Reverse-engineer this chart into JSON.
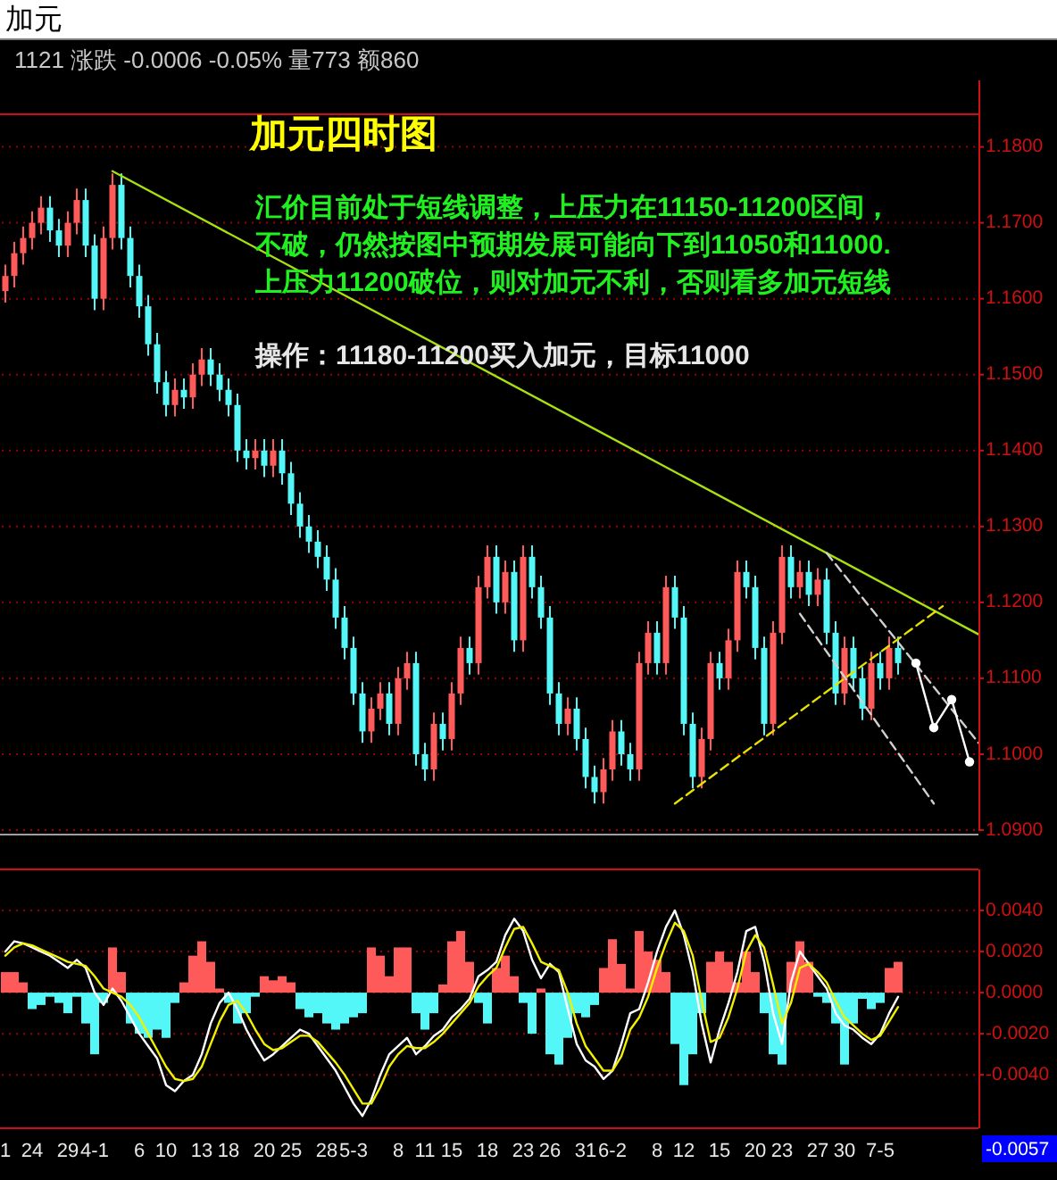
{
  "chart_data": [
    {
      "type": "candlestick",
      "title": "加元四时图",
      "annotations": [
        "加元",
        "1121 涨跌  -0.0006 -0.05% 量773 额860",
        "汇价目前处于短线调整，上压力在11150-11200区间，",
        "不破，仍然按图中预期发展可能向下到11050和11000.",
        "上压力11200破位，则对加元不利，否则看多加元短线",
        "操作：11180-11200买入加元，目标11000"
      ],
      "categories": [
        null,
        null,
        null,
        null,
        null,
        null,
        null,
        null,
        null,
        null,
        null,
        null,
        null,
        null,
        null,
        null,
        null,
        null,
        null,
        null,
        null,
        null,
        null,
        null,
        null,
        null,
        null,
        null,
        null,
        null,
        null,
        null,
        null,
        null,
        null,
        null,
        null,
        null,
        null,
        null,
        null,
        null,
        null,
        null,
        null,
        null,
        null,
        null,
        null,
        null,
        null,
        null,
        null,
        null,
        null,
        null,
        null,
        null,
        null,
        null,
        null,
        null,
        null,
        null,
        null,
        null,
        null,
        null,
        null,
        null,
        null,
        null,
        null,
        null,
        null,
        null,
        null,
        null,
        null,
        null,
        null,
        null,
        null,
        null,
        null,
        null,
        null,
        null,
        null,
        null,
        null,
        null,
        null,
        null,
        null,
        null,
        null,
        null,
        null,
        null,
        null,
        null,
        null,
        null,
        null,
        null,
        null,
        null,
        null,
        null
      ],
      "ohlc": [
        [
          1.161,
          1.1645,
          1.1595,
          1.163
        ],
        [
          1.163,
          1.1675,
          1.1615,
          1.166
        ],
        [
          1.166,
          1.1695,
          1.1645,
          1.168
        ],
        [
          1.168,
          1.1715,
          1.1665,
          1.17
        ],
        [
          1.17,
          1.1735,
          1.1685,
          1.172
        ],
        [
          1.172,
          1.1735,
          1.1675,
          1.169
        ],
        [
          1.169,
          1.1705,
          1.1655,
          1.167
        ],
        [
          1.167,
          1.1715,
          1.1655,
          1.17
        ],
        [
          1.17,
          1.1745,
          1.1685,
          1.173
        ],
        [
          1.173,
          1.1745,
          1.1655,
          1.167
        ],
        [
          1.167,
          1.1685,
          1.1585,
          1.16
        ],
        [
          1.16,
          1.1695,
          1.1585,
          1.168
        ],
        [
          1.168,
          1.1765,
          1.1665,
          1.175
        ],
        [
          1.175,
          1.1765,
          1.1665,
          1.168
        ],
        [
          1.168,
          1.1695,
          1.1615,
          1.163
        ],
        [
          1.163,
          1.1645,
          1.1575,
          1.159
        ],
        [
          1.159,
          1.1605,
          1.1525,
          1.154
        ],
        [
          1.154,
          1.1555,
          1.1475,
          1.149
        ],
        [
          1.149,
          1.1505,
          1.1445,
          1.146
        ],
        [
          1.146,
          1.1495,
          1.1445,
          1.148
        ],
        [
          1.148,
          1.1495,
          1.1455,
          1.147
        ],
        [
          1.147,
          1.1515,
          1.1455,
          1.15
        ],
        [
          1.15,
          1.1535,
          1.1485,
          1.152
        ],
        [
          1.152,
          1.1535,
          1.1485,
          1.15
        ],
        [
          1.15,
          1.1515,
          1.1465,
          1.148
        ],
        [
          1.148,
          1.1495,
          1.1445,
          1.146
        ],
        [
          1.146,
          1.1475,
          1.1385,
          1.14
        ],
        [
          1.14,
          1.1415,
          1.1375,
          1.139
        ],
        [
          1.139,
          1.1415,
          1.1375,
          1.14
        ],
        [
          1.14,
          1.1415,
          1.1365,
          1.138
        ],
        [
          1.138,
          1.1415,
          1.1365,
          1.14
        ],
        [
          1.14,
          1.1415,
          1.1355,
          1.137
        ],
        [
          1.137,
          1.1385,
          1.1315,
          1.133
        ],
        [
          1.133,
          1.1345,
          1.1285,
          1.13
        ],
        [
          1.13,
          1.1315,
          1.1265,
          1.128
        ],
        [
          1.128,
          1.1295,
          1.1245,
          1.126
        ],
        [
          1.126,
          1.1275,
          1.1215,
          1.123
        ],
        [
          1.123,
          1.1245,
          1.1165,
          1.118
        ],
        [
          1.118,
          1.1195,
          1.1125,
          1.114
        ],
        [
          1.114,
          1.1155,
          1.1065,
          1.108
        ],
        [
          1.108,
          1.1095,
          1.1015,
          1.103
        ],
        [
          1.103,
          1.1075,
          1.1015,
          1.106
        ],
        [
          1.106,
          1.1095,
          1.1045,
          1.108
        ],
        [
          1.108,
          1.1095,
          1.1025,
          1.104
        ],
        [
          1.104,
          1.1115,
          1.1025,
          1.11
        ],
        [
          1.11,
          1.1135,
          1.1085,
          1.112
        ],
        [
          1.112,
          1.1135,
          1.0985,
          1.1
        ],
        [
          1.1,
          1.1015,
          1.0965,
          1.098
        ],
        [
          1.098,
          1.1055,
          1.0965,
          1.104
        ],
        [
          1.104,
          1.1055,
          1.1005,
          1.102
        ],
        [
          1.102,
          1.1095,
          1.1005,
          1.108
        ],
        [
          1.108,
          1.1155,
          1.1065,
          1.114
        ],
        [
          1.114,
          1.1155,
          1.1105,
          1.112
        ],
        [
          1.112,
          1.1235,
          1.1105,
          1.122
        ],
        [
          1.122,
          1.1275,
          1.1205,
          1.126
        ],
        [
          1.126,
          1.1275,
          1.1185,
          1.12
        ],
        [
          1.12,
          1.1255,
          1.1185,
          1.124
        ],
        [
          1.124,
          1.1255,
          1.1135,
          1.115
        ],
        [
          1.115,
          1.1275,
          1.1135,
          1.126
        ],
        [
          1.126,
          1.1275,
          1.1205,
          1.122
        ],
        [
          1.122,
          1.1235,
          1.1165,
          1.118
        ],
        [
          1.118,
          1.1195,
          1.1065,
          1.108
        ],
        [
          1.108,
          1.1095,
          1.1025,
          1.104
        ],
        [
          1.104,
          1.1075,
          1.1025,
          1.106
        ],
        [
          1.106,
          1.1075,
          1.1005,
          1.102
        ],
        [
          1.102,
          1.1035,
          1.0955,
          1.097
        ],
        [
          1.097,
          1.0985,
          1.0935,
          1.095
        ],
        [
          1.095,
          1.0995,
          1.0935,
          1.098
        ],
        [
          1.098,
          1.1045,
          1.0965,
          1.103
        ],
        [
          1.103,
          1.1045,
          1.0985,
          1.1
        ],
        [
          1.1,
          1.1015,
          1.0965,
          1.098
        ],
        [
          1.098,
          1.1135,
          1.0965,
          1.112
        ],
        [
          1.112,
          1.1175,
          1.1105,
          1.116
        ],
        [
          1.116,
          1.1175,
          1.1105,
          1.112
        ],
        [
          1.112,
          1.1235,
          1.1105,
          1.122
        ],
        [
          1.122,
          1.1235,
          1.1165,
          1.118
        ],
        [
          1.118,
          1.1195,
          1.1025,
          1.104
        ],
        [
          1.104,
          1.1055,
          1.0955,
          1.097
        ],
        [
          1.097,
          1.1035,
          1.0955,
          1.102
        ],
        [
          1.102,
          1.1135,
          1.1005,
          1.112
        ],
        [
          1.112,
          1.1135,
          1.1085,
          1.11
        ],
        [
          1.11,
          1.1165,
          1.1085,
          1.115
        ],
        [
          1.115,
          1.1255,
          1.1135,
          1.124
        ],
        [
          1.124,
          1.1255,
          1.1205,
          1.122
        ],
        [
          1.122,
          1.1235,
          1.1125,
          1.114
        ],
        [
          1.114,
          1.1155,
          1.1025,
          1.104
        ],
        [
          1.104,
          1.1175,
          1.1025,
          1.116
        ],
        [
          1.116,
          1.1275,
          1.1145,
          1.126
        ],
        [
          1.126,
          1.1275,
          1.1205,
          1.122
        ],
        [
          1.122,
          1.1255,
          1.1205,
          1.124
        ],
        [
          1.124,
          1.1255,
          1.1195,
          1.121
        ],
        [
          1.121,
          1.1245,
          1.1195,
          1.123
        ],
        [
          1.123,
          1.1245,
          1.1145,
          1.116
        ],
        [
          1.116,
          1.1175,
          1.1065,
          1.108
        ],
        [
          1.108,
          1.1155,
          1.1065,
          1.114
        ],
        [
          1.114,
          1.1155,
          1.1085,
          1.11
        ],
        [
          1.11,
          1.1115,
          1.1045,
          1.106
        ],
        [
          1.106,
          1.1135,
          1.1045,
          1.112
        ],
        [
          1.112,
          1.1135,
          1.1085,
          1.11
        ],
        [
          1.11,
          1.1155,
          1.1085,
          1.114
        ],
        [
          1.114,
          1.1155,
          1.1105,
          1.112
        ],
        null,
        null,
        null,
        null,
        null,
        null,
        null,
        null,
        null
      ],
      "series": [
        {
          "type": "line",
          "color": "#a8e010",
          "values": [
            null,
            null,
            null,
            null,
            null,
            null,
            null,
            null,
            null,
            null,
            null,
            null,
            1.1768,
            null,
            null,
            null,
            null,
            null,
            null,
            null,
            null,
            null,
            null,
            null,
            null,
            null,
            null,
            null,
            null,
            null,
            null,
            null,
            null,
            null,
            null,
            null,
            null,
            null,
            null,
            null,
            null,
            null,
            null,
            null,
            null,
            null,
            null,
            null,
            null,
            null,
            null,
            null,
            null,
            null,
            null,
            null,
            null,
            null,
            null,
            null,
            null,
            null,
            null,
            null,
            null,
            null,
            null,
            null,
            null,
            null,
            null,
            null,
            null,
            null,
            null,
            null,
            null,
            null,
            null,
            null,
            null,
            null,
            null,
            null,
            null,
            null,
            null,
            null,
            null,
            null,
            null,
            null,
            null,
            null,
            null,
            null,
            null,
            null,
            null,
            null,
            null,
            null,
            null,
            null,
            null,
            null,
            null,
            null,
            null,
            1.1158
          ]
        },
        {
          "type": "line",
          "color": "#e8e000",
          "line_style": "dashed",
          "values": [
            null,
            null,
            null,
            null,
            null,
            null,
            null,
            null,
            null,
            null,
            null,
            null,
            null,
            null,
            null,
            null,
            null,
            null,
            null,
            null,
            null,
            null,
            null,
            null,
            null,
            null,
            null,
            null,
            null,
            null,
            null,
            null,
            null,
            null,
            null,
            null,
            null,
            null,
            null,
            null,
            null,
            null,
            null,
            null,
            null,
            null,
            null,
            null,
            null,
            null,
            null,
            null,
            null,
            null,
            null,
            null,
            null,
            null,
            null,
            null,
            null,
            null,
            null,
            null,
            null,
            null,
            null,
            null,
            null,
            null,
            null,
            null,
            null,
            null,
            null,
            1.0935,
            null,
            null,
            null,
            null,
            null,
            null,
            null,
            null,
            null,
            null,
            null,
            null,
            null,
            null,
            null,
            null,
            null,
            null,
            null,
            null,
            null,
            null,
            null,
            null,
            null,
            null,
            null,
            null,
            null,
            1.1195,
            null,
            null,
            null,
            null
          ]
        },
        {
          "type": "line",
          "color": "#d0d0d0",
          "line_style": "dashed",
          "values": [
            null,
            null,
            null,
            null,
            null,
            null,
            null,
            null,
            null,
            null,
            null,
            null,
            null,
            null,
            null,
            null,
            null,
            null,
            null,
            null,
            null,
            null,
            null,
            null,
            null,
            null,
            null,
            null,
            null,
            null,
            null,
            null,
            null,
            null,
            null,
            null,
            null,
            null,
            null,
            null,
            null,
            null,
            null,
            null,
            null,
            null,
            null,
            null,
            null,
            null,
            null,
            null,
            null,
            null,
            null,
            null,
            null,
            null,
            null,
            null,
            null,
            null,
            null,
            null,
            null,
            null,
            null,
            null,
            null,
            null,
            null,
            null,
            null,
            null,
            null,
            null,
            null,
            null,
            null,
            null,
            null,
            null,
            null,
            null,
            null,
            null,
            null,
            null,
            null,
            null,
            null,
            null,
            1.1265,
            null,
            null,
            null,
            null,
            null,
            null,
            null,
            null,
            null,
            null,
            null,
            null,
            null,
            null,
            null,
            null,
            1.1015
          ]
        },
        {
          "type": "line",
          "color": "#d0d0d0",
          "line_style": "dashed",
          "values": [
            null,
            null,
            null,
            null,
            null,
            null,
            null,
            null,
            null,
            null,
            null,
            null,
            null,
            null,
            null,
            null,
            null,
            null,
            null,
            null,
            null,
            null,
            null,
            null,
            null,
            null,
            null,
            null,
            null,
            null,
            null,
            null,
            null,
            null,
            null,
            null,
            null,
            null,
            null,
            null,
            null,
            null,
            null,
            null,
            null,
            null,
            null,
            null,
            null,
            null,
            null,
            null,
            null,
            null,
            null,
            null,
            null,
            null,
            null,
            null,
            null,
            null,
            null,
            null,
            null,
            null,
            null,
            null,
            null,
            null,
            null,
            null,
            null,
            null,
            null,
            null,
            null,
            null,
            null,
            null,
            null,
            null,
            null,
            null,
            null,
            null,
            null,
            null,
            null,
            1.1185,
            null,
            null,
            null,
            null,
            null,
            null,
            null,
            null,
            null,
            null,
            null,
            null,
            null,
            null,
            1.0935,
            null,
            null,
            null,
            null,
            null
          ]
        },
        {
          "type": "line",
          "color": "#ffffff",
          "marker": "circle",
          "values": [
            null,
            null,
            null,
            null,
            null,
            null,
            null,
            null,
            null,
            null,
            null,
            null,
            null,
            null,
            null,
            null,
            null,
            null,
            null,
            null,
            null,
            null,
            null,
            null,
            null,
            null,
            null,
            null,
            null,
            null,
            null,
            null,
            null,
            null,
            null,
            null,
            null,
            null,
            null,
            null,
            null,
            null,
            null,
            null,
            null,
            null,
            null,
            null,
            null,
            null,
            null,
            null,
            null,
            null,
            null,
            null,
            null,
            null,
            null,
            null,
            null,
            null,
            null,
            null,
            null,
            null,
            null,
            null,
            null,
            null,
            null,
            null,
            null,
            null,
            null,
            null,
            null,
            null,
            null,
            null,
            null,
            null,
            null,
            null,
            null,
            null,
            null,
            null,
            null,
            null,
            null,
            null,
            null,
            null,
            null,
            null,
            null,
            null,
            null,
            null,
            null,
            null,
            1.112,
            null,
            1.1035,
            null,
            1.1072,
            null,
            1.099,
            null
          ]
        }
      ],
      "ylim": [
        1.09,
        1.1843
      ],
      "yticks": [
        {
          "value": 1.09,
          "label": "1.0900"
        },
        {
          "value": 1.1,
          "label": "1.1000"
        },
        {
          "value": 1.11,
          "label": "1.1100"
        },
        {
          "value": 1.12,
          "label": "1.1200"
        },
        {
          "value": 1.13,
          "label": "1.1300"
        },
        {
          "value": 1.14,
          "label": "1.1400"
        },
        {
          "value": 1.15,
          "label": "1.1500"
        },
        {
          "value": 1.16,
          "label": "1.1600"
        },
        {
          "value": 1.17,
          "label": "1.1700"
        },
        {
          "value": 1.18,
          "label": "1.1800"
        }
      ],
      "grid": "y",
      "tick_labels": "y"
    },
    {
      "type": "bar",
      "categories": [
        "1",
        null,
        null,
        "24",
        null,
        null,
        null,
        "29",
        null,
        null,
        "4-1",
        null,
        null,
        null,
        null,
        "6",
        null,
        null,
        "10",
        null,
        null,
        null,
        "13",
        null,
        null,
        "18",
        null,
        null,
        null,
        "20",
        null,
        null,
        "25",
        null,
        null,
        null,
        "28",
        null,
        null,
        "5-3",
        null,
        null,
        null,
        null,
        "8",
        null,
        null,
        "11",
        null,
        null,
        "15",
        null,
        null,
        null,
        "18",
        null,
        null,
        null,
        "23",
        null,
        null,
        "26",
        null,
        null,
        null,
        "31",
        null,
        null,
        "6-2",
        null,
        null,
        null,
        null,
        "8",
        null,
        null,
        "12",
        null,
        null,
        null,
        "15",
        null,
        null,
        null,
        "20",
        null,
        null,
        "23",
        null,
        null,
        null,
        "27",
        null,
        null,
        "30",
        null,
        null,
        null,
        "7-5",
        null,
        null,
        null,
        null,
        null,
        null,
        null,
        null,
        null,
        null,
        null
      ],
      "series": [
        {
          "type": "bar",
          "values": [
            0.001,
            0.001,
            0.0005,
            -0.0008,
            -0.0006,
            -0.0002,
            -0.0005,
            -0.001,
            -0.0002,
            -0.0015,
            -0.003,
            -0.0005,
            0.0022,
            0.001,
            -0.0015,
            -0.002,
            -0.0022,
            -0.0018,
            -0.0022,
            -0.0005,
            0.0005,
            0.0018,
            0.0025,
            0.0015,
            0.0002,
            -0.0005,
            -0.0015,
            -0.001,
            -0.0002,
            0.0008,
            0.0006,
            0.0008,
            0.0005,
            -0.0008,
            -0.0012,
            -0.001,
            -0.0015,
            -0.0018,
            -0.0015,
            -0.0012,
            -0.001,
            0.0022,
            0.0018,
            0.0008,
            0.0022,
            0.0022,
            -0.001,
            -0.0018,
            -0.001,
            0.0004,
            0.0025,
            0.003,
            0.0015,
            -0.0005,
            -0.0015,
            0.0012,
            0.0018,
            0.0008,
            -0.0005,
            -0.002,
            0.0002,
            -0.003,
            -0.0035,
            -0.0022,
            -0.001,
            -0.0012,
            -0.0006,
            0.0012,
            0.0026,
            0.0014,
            0.0002,
            0.003,
            0.002,
            0.0016,
            0.001,
            -0.0025,
            -0.0045,
            -0.003,
            -0.001,
            0.0015,
            0.002,
            0.0015,
            0.0005,
            0.002,
            0.001,
            -0.001,
            -0.003,
            -0.0035,
            0.0015,
            0.0025,
            0.0015,
            -0.0002,
            -0.0005,
            -0.0015,
            -0.0035,
            -0.0015,
            -0.0003,
            -0.0008,
            -0.0005,
            0.0012,
            0.0015,
            null,
            null,
            null,
            null,
            null,
            null,
            null,
            null,
            null
          ],
          "colors": [
            "#ff5a5a",
            "#ff5a5a",
            "#ff5a5a",
            "#54f7f7",
            "#54f7f7",
            "#54f7f7",
            "#54f7f7",
            "#54f7f7",
            "#54f7f7",
            "#54f7f7",
            "#54f7f7",
            "#54f7f7",
            "#ff5a5a",
            "#ff5a5a",
            "#54f7f7",
            "#54f7f7",
            "#54f7f7",
            "#54f7f7",
            "#54f7f7",
            "#54f7f7",
            "#ff5a5a",
            "#ff5a5a",
            "#ff5a5a",
            "#ff5a5a",
            "#ff5a5a",
            "#54f7f7",
            "#54f7f7",
            "#54f7f7",
            "#54f7f7",
            "#ff5a5a",
            "#ff5a5a",
            "#ff5a5a",
            "#ff5a5a",
            "#54f7f7",
            "#54f7f7",
            "#54f7f7",
            "#54f7f7",
            "#54f7f7",
            "#54f7f7",
            "#54f7f7",
            "#54f7f7",
            "#ff5a5a",
            "#ff5a5a",
            "#ff5a5a",
            "#ff5a5a",
            "#ff5a5a",
            "#54f7f7",
            "#54f7f7",
            "#54f7f7",
            "#ff5a5a",
            "#ff5a5a",
            "#ff5a5a",
            "#ff5a5a",
            "#54f7f7",
            "#54f7f7",
            "#ff5a5a",
            "#ff5a5a",
            "#ff5a5a",
            "#54f7f7",
            "#54f7f7",
            "#ff5a5a",
            "#54f7f7",
            "#54f7f7",
            "#54f7f7",
            "#54f7f7",
            "#54f7f7",
            "#54f7f7",
            "#ff5a5a",
            "#ff5a5a",
            "#ff5a5a",
            "#ff5a5a",
            "#ff5a5a",
            "#ff5a5a",
            "#ff5a5a",
            "#ff5a5a",
            "#54f7f7",
            "#54f7f7",
            "#54f7f7",
            "#54f7f7",
            "#ff5a5a",
            "#ff5a5a",
            "#ff5a5a",
            "#ff5a5a",
            "#ff5a5a",
            "#ff5a5a",
            "#54f7f7",
            "#54f7f7",
            "#54f7f7",
            "#ff5a5a",
            "#ff5a5a",
            "#ff5a5a",
            "#54f7f7",
            "#54f7f7",
            "#54f7f7",
            "#54f7f7",
            "#54f7f7",
            "#54f7f7",
            "#54f7f7",
            "#54f7f7",
            "#ff5a5a",
            "#ff5a5a",
            null,
            null,
            null,
            null,
            null,
            null,
            null,
            null,
            null
          ]
        },
        {
          "type": "line",
          "color": "#ffffff",
          "values": [
            0.002,
            0.0025,
            0.0024,
            0.0022,
            0.002,
            0.0018,
            0.0015,
            0.0012,
            0.0016,
            0.0012,
            0.0,
            -0.0006,
            0.0002,
            -0.0004,
            -0.0012,
            -0.002,
            -0.0026,
            -0.0032,
            -0.0045,
            -0.0048,
            -0.0043,
            -0.004,
            -0.003,
            -0.0015,
            -0.0005,
            0.0,
            -0.0008,
            -0.0018,
            -0.0026,
            -0.0033,
            -0.003,
            -0.0026,
            -0.0022,
            -0.0018,
            -0.002,
            -0.0026,
            -0.0032,
            -0.0038,
            -0.0046,
            -0.0054,
            -0.006,
            -0.0052,
            -0.004,
            -0.003,
            -0.0026,
            -0.0022,
            -0.003,
            -0.0026,
            -0.0021,
            -0.0018,
            -0.0012,
            -0.0008,
            -0.0003,
            0.0008,
            0.0011,
            0.0015,
            0.0028,
            0.0036,
            0.003,
            0.0016,
            0.0007,
            0.0014,
            0.001,
            -0.0008,
            -0.0025,
            -0.0033,
            -0.0036,
            -0.0042,
            -0.0038,
            -0.0025,
            -0.001,
            -0.0008,
            0.0005,
            0.002,
            0.0032,
            0.004,
            0.0028,
            0.001,
            -0.0015,
            -0.0034,
            -0.0018,
            -0.0005,
            0.001,
            0.003,
            0.0032,
            0.0015,
            -0.001,
            -0.0025,
            0.0005,
            0.002,
            0.0014,
            0.0008,
            0.0002,
            -0.001,
            -0.0016,
            -0.0018,
            -0.0022,
            -0.0025,
            -0.002,
            -0.001,
            -0.0002,
            null,
            null,
            null,
            null,
            null,
            null,
            null,
            null,
            null
          ]
        },
        {
          "type": "line",
          "color": "#f0f000",
          "values": [
            0.0018,
            0.0022,
            0.0024,
            0.0023,
            0.0021,
            0.0019,
            0.0017,
            0.0015,
            0.0014,
            0.0013,
            0.0008,
            0.0002,
            0.0,
            -0.0002,
            -0.0006,
            -0.0012,
            -0.002,
            -0.0028,
            -0.0036,
            -0.0042,
            -0.0043,
            -0.0042,
            -0.0036,
            -0.0025,
            -0.0014,
            -0.0006,
            -0.0004,
            -0.001,
            -0.0018,
            -0.0025,
            -0.0028,
            -0.0027,
            -0.0024,
            -0.0021,
            -0.0021,
            -0.0024,
            -0.0029,
            -0.0034,
            -0.004,
            -0.0047,
            -0.0054,
            -0.0054,
            -0.0046,
            -0.0036,
            -0.003,
            -0.0026,
            -0.0027,
            -0.0027,
            -0.0024,
            -0.002,
            -0.0015,
            -0.001,
            -0.0005,
            0.0003,
            0.0008,
            0.0012,
            0.0022,
            0.0031,
            0.0032,
            0.0024,
            0.0015,
            0.0013,
            0.0011,
            0.0,
            -0.0015,
            -0.0026,
            -0.0032,
            -0.0038,
            -0.0038,
            -0.0031,
            -0.0018,
            -0.0012,
            -0.0002,
            0.0012,
            0.0024,
            0.0034,
            0.003,
            0.0018,
            -0.0004,
            -0.0024,
            -0.0022,
            -0.0012,
            0.0002,
            0.002,
            0.0028,
            0.0022,
            0.0004,
            -0.0015,
            -0.0005,
            0.0012,
            0.0014,
            0.001,
            0.0005,
            -0.0004,
            -0.0012,
            -0.0016,
            -0.002,
            -0.0023,
            -0.0021,
            -0.0014,
            -0.0007,
            null,
            null,
            null,
            null,
            null,
            null,
            null,
            null,
            null
          ]
        }
      ],
      "ylim": [
        -0.0066,
        0.006
      ],
      "yticks": [
        {
          "value": -0.004,
          "label": "-0.0040"
        },
        {
          "value": -0.002,
          "label": "-0.0020"
        },
        {
          "value": 0,
          "label": "0.0000"
        },
        {
          "value": 0.002,
          "label": "0.0020"
        },
        {
          "value": 0.004,
          "label": "0.0040"
        }
      ],
      "grid": "y",
      "annotations": [
        "-0.0057"
      ]
    }
  ]
}
